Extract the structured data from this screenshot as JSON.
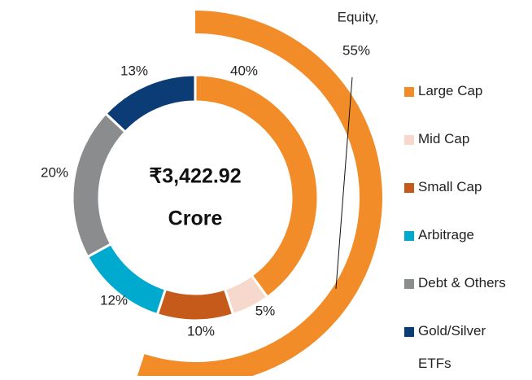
{
  "chart_data": {
    "type": "donut",
    "center_text": [
      "₹3,422.92",
      "Crore"
    ],
    "categories": [
      "Large Cap",
      "Mid Cap",
      "Small Cap",
      "Arbitrage",
      "Debt & Others",
      "Gold/Silver ETFs"
    ],
    "values": [
      40,
      5,
      10,
      12,
      20,
      13
    ],
    "value_labels": [
      "40%",
      "5%",
      "10%",
      "12%",
      "20%",
      "13%"
    ],
    "colors": [
      "#f28c28",
      "#f6d9cc",
      "#c65a1a",
      "#00a9ce",
      "#8a8c8e",
      "#0b3c75"
    ],
    "outer_ring": {
      "name": "Equity,",
      "value": 55,
      "value_label": "55%",
      "color": "#f28c28"
    },
    "legend": "right"
  }
}
